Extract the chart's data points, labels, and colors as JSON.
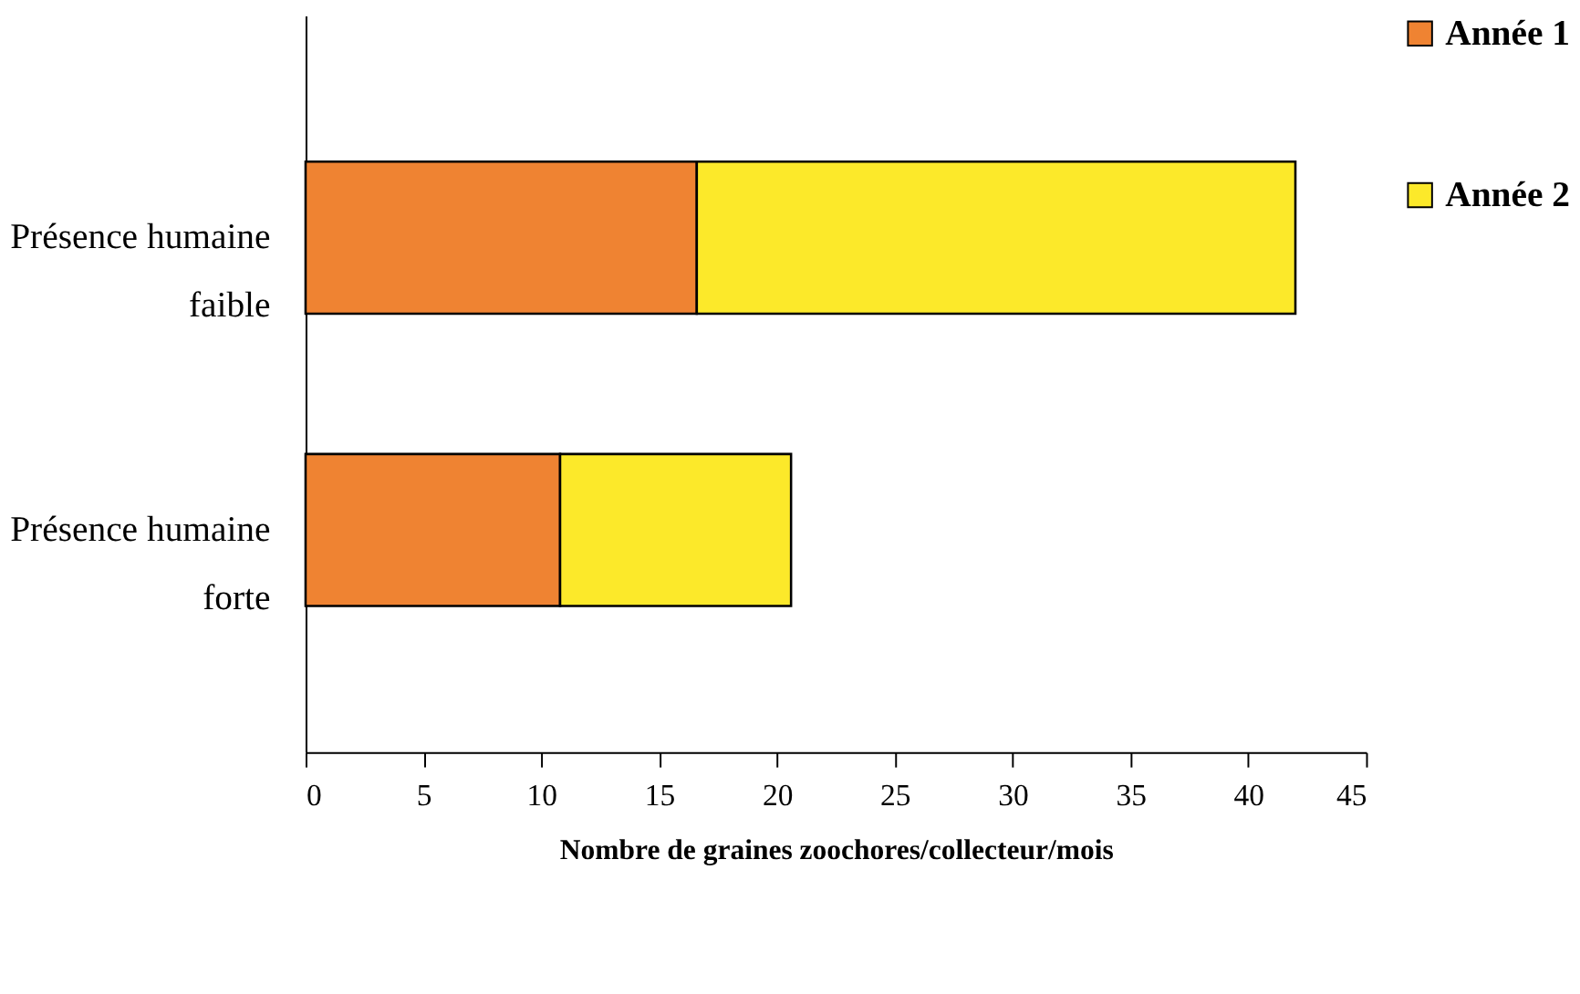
{
  "chart_data": {
    "type": "bar",
    "orientation": "horizontal",
    "stacked": true,
    "categories": [
      "Présence humaine faible",
      "Présence humaine forte"
    ],
    "series": [
      {
        "name": "Année 1",
        "color": "#ef8332",
        "values": [
          16.6,
          10.8
        ]
      },
      {
        "name": "Année 2",
        "color": "#fce92a",
        "values": [
          25.4,
          9.8
        ]
      }
    ],
    "xlabel": "Nombre de graines zoochores/collecteur/mois",
    "xlim": [
      0,
      45
    ],
    "xticks": [
      0,
      5,
      10,
      15,
      20,
      25,
      30,
      35,
      40,
      45
    ],
    "grid": false,
    "legend": "right"
  }
}
